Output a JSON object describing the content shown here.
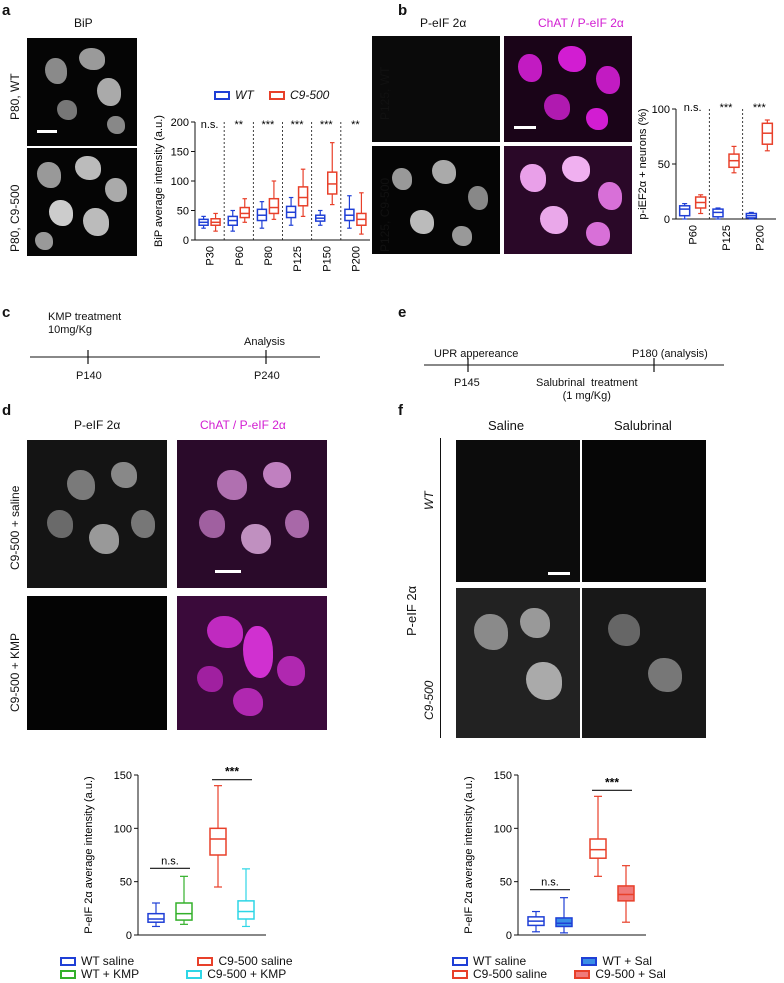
{
  "panels": {
    "a": {
      "letter": "a",
      "image_title": "BiP",
      "row_labels": [
        "P80, WT",
        "P80, C9-500"
      ]
    },
    "b": {
      "letter": "b",
      "col_labels": [
        "P-eIF 2α",
        "ChAT / P-eIF 2α"
      ],
      "row_labels": [
        "P125, WT",
        "P125, C9-500"
      ]
    },
    "c": {
      "letter": "c",
      "events": [
        {
          "label": "KMP treatment\n10mg/Kg",
          "time": "P140"
        },
        {
          "label": "Analysis",
          "time": "P240"
        }
      ]
    },
    "d": {
      "letter": "d",
      "col_labels": [
        "P-eIF 2α",
        "ChAT / P-eIF 2α"
      ],
      "row_labels": [
        "C9-500 + saline",
        "C9-500 + KMP"
      ]
    },
    "e": {
      "letter": "e",
      "events": [
        {
          "label": "UPR appereance",
          "time": "P145"
        },
        {
          "label": "Salubrinal  treatment\n(1 mg/Kg)",
          "time": ""
        },
        {
          "label": "P180 (analysis)",
          "time": ""
        }
      ]
    },
    "f": {
      "letter": "f",
      "col_labels": [
        "Saline",
        "Salubrinal"
      ],
      "row_labels": [
        "WT",
        "C9-500"
      ],
      "side_label": "P-eIF 2α"
    }
  },
  "colors": {
    "wt": "#1f3fd6",
    "c9": "#e8402a",
    "green": "#33b02a",
    "cyan": "#2ed6e6",
    "magenta": "#d21dd2",
    "pink_fill": "#f07a7a",
    "blue_fill": "#3a8ee6"
  },
  "chart_data": [
    {
      "id": "a",
      "type": "box",
      "ylabel": "BiP average intensity (a.u.)",
      "ylim": [
        0,
        200
      ],
      "yticks": [
        0,
        50,
        100,
        150,
        200
      ],
      "categories": [
        "P30",
        "P60",
        "P80",
        "P125",
        "P150",
        "P200"
      ],
      "legend": [
        "WT",
        "C9-500"
      ],
      "significance": [
        "n.s.",
        "**",
        "***",
        "***",
        "***",
        "**"
      ],
      "series": [
        {
          "name": "WT",
          "color": "#1f3fd6",
          "boxes": [
            {
              "min": 20,
              "q1": 25,
              "median": 30,
              "q3": 35,
              "max": 40
            },
            {
              "min": 15,
              "q1": 25,
              "median": 33,
              "q3": 40,
              "max": 50
            },
            {
              "min": 20,
              "q1": 33,
              "median": 42,
              "q3": 52,
              "max": 65
            },
            {
              "min": 25,
              "q1": 38,
              "median": 47,
              "q3": 57,
              "max": 72
            },
            {
              "min": 25,
              "q1": 32,
              "median": 37,
              "q3": 42,
              "max": 50
            },
            {
              "min": 20,
              "q1": 33,
              "median": 42,
              "q3": 52,
              "max": 75
            }
          ]
        },
        {
          "name": "C9-500",
          "color": "#e8402a",
          "boxes": [
            {
              "min": 15,
              "q1": 25,
              "median": 30,
              "q3": 36,
              "max": 45
            },
            {
              "min": 30,
              "q1": 38,
              "median": 45,
              "q3": 55,
              "max": 70
            },
            {
              "min": 35,
              "q1": 45,
              "median": 55,
              "q3": 70,
              "max": 100
            },
            {
              "min": 40,
              "q1": 58,
              "median": 72,
              "q3": 90,
              "max": 120
            },
            {
              "min": 60,
              "q1": 78,
              "median": 95,
              "q3": 115,
              "max": 165
            },
            {
              "min": 10,
              "q1": 25,
              "median": 35,
              "q3": 45,
              "max": 80
            }
          ]
        }
      ]
    },
    {
      "id": "b",
      "type": "box",
      "ylabel": "p-iEF2α + neurons (%)",
      "ylim": [
        0,
        100
      ],
      "yticks": [
        0,
        50,
        100
      ],
      "categories": [
        "P60",
        "P125",
        "P200"
      ],
      "significance": [
        "n.s.",
        "***",
        "***"
      ],
      "series": [
        {
          "name": "WT",
          "color": "#1f3fd6",
          "boxes": [
            {
              "min": 0,
              "q1": 3,
              "median": 9,
              "q3": 12,
              "max": 14
            },
            {
              "min": 0,
              "q1": 2,
              "median": 6,
              "q3": 9,
              "max": 10
            },
            {
              "min": 0,
              "q1": 1,
              "median": 3,
              "q3": 5,
              "max": 6
            }
          ]
        },
        {
          "name": "C9-500",
          "color": "#e8402a",
          "boxes": [
            {
              "min": 5,
              "q1": 10,
              "median": 15,
              "q3": 20,
              "max": 22
            },
            {
              "min": 42,
              "q1": 47,
              "median": 53,
              "q3": 59,
              "max": 66
            },
            {
              "min": 62,
              "q1": 68,
              "median": 78,
              "q3": 87,
              "max": 90
            }
          ]
        }
      ]
    },
    {
      "id": "d",
      "type": "box",
      "ylabel": "P-eIF 2α average intensity (a.u.)",
      "ylim": [
        0,
        150
      ],
      "yticks": [
        0,
        50,
        100,
        150
      ],
      "significance": [
        "n.s.",
        "***"
      ],
      "legend": [
        "WT saline",
        "C9-500  saline",
        "WT + KMP",
        "C9-500 + KMP"
      ],
      "boxes": [
        {
          "name": "WT saline",
          "color": "#1f3fd6",
          "min": 8,
          "q1": 12,
          "median": 15,
          "q3": 20,
          "max": 30
        },
        {
          "name": "WT + KMP",
          "color": "#33b02a",
          "min": 10,
          "q1": 14,
          "median": 20,
          "q3": 30,
          "max": 55
        },
        {
          "name": "C9-500  saline",
          "color": "#e8402a",
          "min": 45,
          "q1": 75,
          "median": 90,
          "q3": 100,
          "max": 140
        },
        {
          "name": "C9-500 + KMP",
          "color": "#2ed6e6",
          "min": 8,
          "q1": 15,
          "median": 22,
          "q3": 32,
          "max": 62
        }
      ]
    },
    {
      "id": "f",
      "type": "box",
      "ylabel": "P-eIF 2α average intensity (a.u.)",
      "ylim": [
        0,
        150
      ],
      "yticks": [
        0,
        50,
        100,
        150
      ],
      "significance": [
        "n.s.",
        "***"
      ],
      "legend": [
        "WT saline",
        "C9-500 saline",
        "WT + Sal",
        "C9-500 + Sal"
      ],
      "boxes": [
        {
          "name": "WT saline",
          "color": "#1f3fd6",
          "filled": false,
          "min": 3,
          "q1": 9,
          "median": 13,
          "q3": 17,
          "max": 22
        },
        {
          "name": "WT + Sal",
          "color": "#1f3fd6",
          "filled": true,
          "min": 2,
          "q1": 8,
          "median": 11,
          "q3": 16,
          "max": 35
        },
        {
          "name": "C9-500 saline",
          "color": "#e8402a",
          "filled": false,
          "min": 55,
          "q1": 72,
          "median": 80,
          "q3": 90,
          "max": 130
        },
        {
          "name": "C9-500 + Sal",
          "color": "#e8402a",
          "filled": true,
          "min": 12,
          "q1": 32,
          "median": 38,
          "q3": 46,
          "max": 65
        }
      ]
    }
  ]
}
